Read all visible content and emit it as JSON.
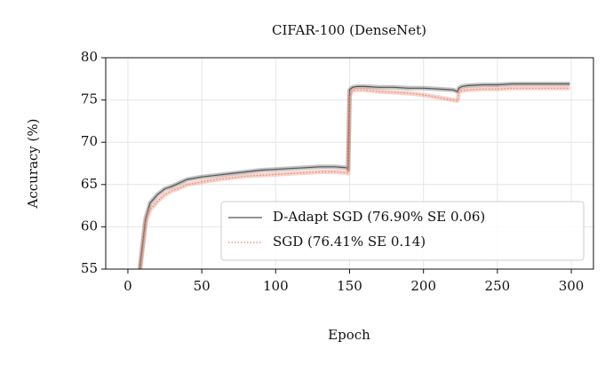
{
  "chart_data": {
    "type": "line",
    "title": "CIFAR-100 (DenseNet)",
    "x_label": "Epoch",
    "y_label": "Accuracy (%)",
    "x": [
      8,
      10,
      12,
      15,
      20,
      25,
      30,
      35,
      40,
      50,
      60,
      70,
      80,
      90,
      100,
      110,
      120,
      130,
      140,
      148,
      149,
      150,
      152,
      155,
      160,
      170,
      180,
      190,
      200,
      210,
      220,
      223,
      224,
      226,
      230,
      240,
      250,
      260,
      270,
      280,
      290,
      299
    ],
    "series": [
      {
        "name": "D-Adapt SGD (76.90% SE 0.06)",
        "color": "#555555",
        "dash": "solid",
        "values": [
          55,
          58,
          61,
          62.8,
          63.8,
          64.5,
          64.8,
          65.2,
          65.6,
          65.9,
          66.1,
          66.3,
          66.5,
          66.7,
          66.8,
          66.9,
          67,
          67.1,
          67.1,
          67.0,
          66.8,
          76.2,
          76.5,
          76.6,
          76.6,
          76.5,
          76.5,
          76.4,
          76.4,
          76.3,
          76.2,
          76.0,
          76.4,
          76.6,
          76.7,
          76.8,
          76.8,
          76.9,
          76.9,
          76.9,
          76.9,
          76.9
        ]
      },
      {
        "name": "SGD (76.41% SE 0.14)",
        "color": "#e8836c",
        "dash": "dotted",
        "values": [
          54.5,
          57.5,
          60.5,
          62,
          63,
          63.8,
          64.3,
          64.6,
          65,
          65.3,
          65.6,
          65.8,
          66,
          66.1,
          66.2,
          66.3,
          66.4,
          66.5,
          66.5,
          66.4,
          66.3,
          75.5,
          76.1,
          76.2,
          76.2,
          76.0,
          75.9,
          75.8,
          75.6,
          75.3,
          75.0,
          74.9,
          75.9,
          76.1,
          76.2,
          76.3,
          76.3,
          76.4,
          76.4,
          76.4,
          76.4,
          76.4
        ]
      }
    ],
    "xlim": [
      -15,
      315
    ],
    "ylim": [
      55,
      80
    ],
    "xticks": [
      0,
      50,
      100,
      150,
      200,
      250,
      300
    ],
    "yticks": [
      55,
      60,
      65,
      70,
      75,
      80
    ],
    "grid": true,
    "legend": "lower right"
  }
}
